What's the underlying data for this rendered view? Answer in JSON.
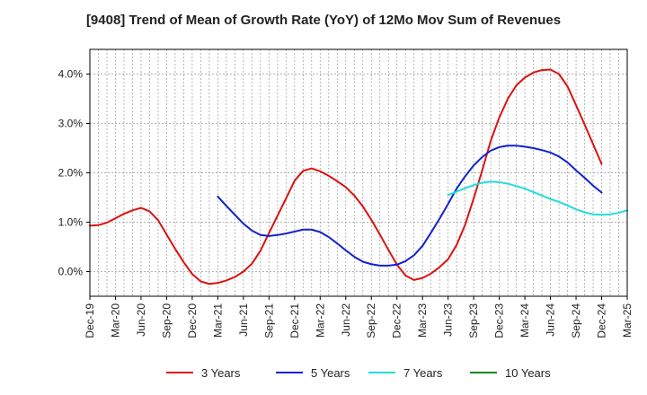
{
  "chart_data": {
    "type": "line",
    "title": "[9408]  Trend of Mean of Growth Rate (YoY) of 12Mo Mov Sum of Revenues",
    "xlabel": "",
    "ylabel": "",
    "ylim": [
      -0.5,
      4.5
    ],
    "yticks": [
      0.0,
      1.0,
      2.0,
      3.0,
      4.0
    ],
    "ytick_labels": [
      "0.0%",
      "1.0%",
      "2.0%",
      "3.0%",
      "4.0%"
    ],
    "x_start": "Dec-19",
    "x_end": "Mar-25",
    "x_tick_labels": [
      "Dec-19",
      "Mar-20",
      "Jun-20",
      "Sep-20",
      "Dec-20",
      "Mar-21",
      "Jun-21",
      "Sep-21",
      "Dec-21",
      "Mar-22",
      "Jun-22",
      "Sep-22",
      "Dec-22",
      "Mar-23",
      "Jun-23",
      "Sep-23",
      "Dec-23",
      "Mar-24",
      "Jun-24",
      "Sep-24",
      "Dec-24",
      "Mar-25"
    ],
    "grid": true,
    "legend_position": "bottom",
    "series": [
      {
        "name": "3 Years",
        "color": "#dd1111",
        "start_index": 0,
        "values": [
          0.93,
          0.94,
          0.99,
          1.08,
          1.17,
          1.24,
          1.29,
          1.22,
          1.04,
          0.75,
          0.46,
          0.19,
          -0.05,
          -0.2,
          -0.25,
          -0.23,
          -0.18,
          -0.11,
          0.0,
          0.16,
          0.42,
          0.78,
          1.13,
          1.48,
          1.84,
          2.04,
          2.09,
          2.03,
          1.94,
          1.83,
          1.71,
          1.54,
          1.32,
          1.05,
          0.75,
          0.44,
          0.14,
          -0.08,
          -0.17,
          -0.13,
          -0.04,
          0.09,
          0.25,
          0.54,
          0.95,
          1.48,
          2.05,
          2.65,
          3.12,
          3.5,
          3.77,
          3.93,
          4.03,
          4.08,
          4.09,
          4.0,
          3.75,
          3.37,
          2.98,
          2.58,
          2.18
        ]
      },
      {
        "name": "5 Years",
        "color": "#1122cc",
        "start_index": 15,
        "values": [
          1.52,
          1.33,
          1.15,
          0.97,
          0.83,
          0.74,
          0.72,
          0.74,
          0.77,
          0.81,
          0.85,
          0.85,
          0.8,
          0.7,
          0.57,
          0.43,
          0.3,
          0.2,
          0.15,
          0.12,
          0.12,
          0.14,
          0.21,
          0.33,
          0.52,
          0.79,
          1.07,
          1.37,
          1.68,
          1.93,
          2.15,
          2.32,
          2.45,
          2.52,
          2.55,
          2.55,
          2.53,
          2.5,
          2.46,
          2.41,
          2.33,
          2.21,
          2.05,
          1.9,
          1.74,
          1.6
        ]
      },
      {
        "name": "7 Years",
        "color": "#22dddd",
        "start_index": 42,
        "values": [
          1.55,
          1.62,
          1.69,
          1.75,
          1.8,
          1.82,
          1.81,
          1.78,
          1.73,
          1.68,
          1.61,
          1.54,
          1.47,
          1.41,
          1.34,
          1.26,
          1.2,
          1.16,
          1.15,
          1.16,
          1.19,
          1.24
        ]
      },
      {
        "name": "10 Years",
        "color": "#118811",
        "start_index": 0,
        "values": []
      }
    ]
  }
}
